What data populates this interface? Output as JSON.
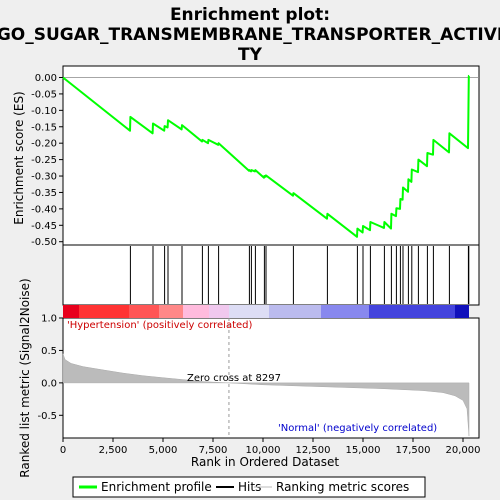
{
  "chart_data": {
    "type": "line",
    "title_lines": [
      "Enrichment plot:",
      "GO_SUGAR_TRANSMEMBRANE_TRANSPORTER_ACTIVI",
      "TY"
    ],
    "xlabel": "Rank in Ordered Dataset",
    "xlim": [
      0,
      20800
    ],
    "x_ticks": [
      0,
      2500,
      5000,
      7500,
      10000,
      12500,
      15000,
      17500,
      20000
    ],
    "x_tick_labels": [
      "0",
      "2,500",
      "5,000",
      "7,500",
      "10,000",
      "12,500",
      "15,000",
      "17,500",
      "20,000"
    ],
    "es_panel": {
      "ylabel": "Enrichment score (ES)",
      "ylim": [
        -0.51,
        0.035
      ],
      "y_ticks": [
        0.0,
        -0.05,
        -0.1,
        -0.15,
        -0.2,
        -0.25,
        -0.3,
        -0.35,
        -0.4,
        -0.45,
        -0.5
      ],
      "y_tick_labels": [
        "0.00",
        "-0.05",
        "-0.10",
        "-0.15",
        "-0.20",
        "-0.25",
        "-0.30",
        "-0.35",
        "-0.40",
        "-0.45",
        "-0.50"
      ],
      "series": [
        {
          "name": "Enrichment profile",
          "color": "#00ff00",
          "x": [
            0,
            3350,
            3370,
            4480,
            4500,
            5060,
            5080,
            5230,
            5250,
            5930,
            5950,
            6950,
            6970,
            7250,
            7270,
            7760,
            7780,
            9300,
            9320,
            9400,
            9420,
            9600,
            9620,
            10050,
            10070,
            10130,
            10150,
            11500,
            11520,
            13200,
            13220,
            14700,
            14720,
            14980,
            15000,
            15350,
            15370,
            16050,
            16070,
            16400,
            16420,
            16650,
            16670,
            16850,
            16870,
            16980,
            17000,
            17250,
            17270,
            17420,
            17440,
            17750,
            17770,
            18200,
            18220,
            18500,
            18520,
            19300,
            19320,
            20250,
            20270,
            20290,
            20300
          ],
          "y": [
            0.0,
            -0.162,
            -0.12,
            -0.17,
            -0.14,
            -0.162,
            -0.148,
            -0.152,
            -0.13,
            -0.158,
            -0.145,
            -0.195,
            -0.19,
            -0.2,
            -0.19,
            -0.205,
            -0.2,
            -0.284,
            -0.282,
            -0.286,
            -0.282,
            -0.286,
            -0.282,
            -0.305,
            -0.3,
            -0.302,
            -0.298,
            -0.36,
            -0.352,
            -0.43,
            -0.415,
            -0.485,
            -0.46,
            -0.472,
            -0.452,
            -0.465,
            -0.44,
            -0.458,
            -0.44,
            -0.46,
            -0.415,
            -0.422,
            -0.398,
            -0.4,
            -0.37,
            -0.372,
            -0.335,
            -0.348,
            -0.31,
            -0.318,
            -0.28,
            -0.288,
            -0.25,
            -0.27,
            -0.23,
            -0.235,
            -0.19,
            -0.228,
            -0.17,
            -0.215,
            -0.11,
            0.005,
            0.005
          ]
        }
      ]
    },
    "hits": [
      3370,
      4500,
      5080,
      5250,
      5950,
      6970,
      7270,
      7780,
      9320,
      9420,
      9620,
      10070,
      10150,
      11520,
      13220,
      14720,
      15000,
      15370,
      16070,
      16420,
      16670,
      16870,
      17000,
      17270,
      17440,
      17770,
      18220,
      18520,
      19320,
      20270,
      20290
    ],
    "color_bar": [
      {
        "x0": 0,
        "x1": 800,
        "color": "#e8001c"
      },
      {
        "x0": 800,
        "x1": 3300,
        "color": "#ff3333"
      },
      {
        "x0": 3300,
        "x1": 4800,
        "color": "#ff5555"
      },
      {
        "x0": 4800,
        "x1": 6000,
        "color": "#ff8888"
      },
      {
        "x0": 6000,
        "x1": 7300,
        "color": "#ffbbdd"
      },
      {
        "x0": 7300,
        "x1": 8300,
        "color": "#f0c8ee"
      },
      {
        "x0": 8300,
        "x1": 10300,
        "color": "#ddddf5"
      },
      {
        "x0": 10300,
        "x1": 12900,
        "color": "#bbbbee"
      },
      {
        "x0": 12900,
        "x1": 15300,
        "color": "#8888ee"
      },
      {
        "x0": 15300,
        "x1": 19600,
        "color": "#4444dd"
      },
      {
        "x0": 19600,
        "x1": 20300,
        "color": "#1111bb"
      }
    ],
    "rank_panel": {
      "ylabel": "Ranked list metric (Signal2Noise)",
      "ylim": [
        -0.85,
        1.0
      ],
      "y_ticks": [
        1.0,
        0.5,
        0.0,
        -0.5
      ],
      "y_tick_labels": [
        "1.0",
        "0.5",
        "0.0",
        "-0.5"
      ],
      "zero_cross": 8297,
      "metric_x": [
        0,
        100,
        400,
        1000,
        2000,
        3000,
        4000,
        5000,
        6000,
        7000,
        8297,
        10000,
        12000,
        14000,
        16000,
        18000,
        19000,
        19600,
        20000,
        20200,
        20300
      ],
      "metric_y": [
        0.45,
        0.36,
        0.3,
        0.25,
        0.2,
        0.15,
        0.11,
        0.08,
        0.05,
        0.02,
        0.0,
        -0.03,
        -0.05,
        -0.07,
        -0.09,
        -0.12,
        -0.15,
        -0.2,
        -0.27,
        -0.4,
        -0.82
      ]
    },
    "annotations": {
      "positive": "'Hypertension' (positively correlated)",
      "negative": "'Normal' (negatively correlated)",
      "zero_cross": "Zero cross at 8297"
    },
    "legend": [
      "Enrichment profile",
      "Hits",
      "Ranking metric scores"
    ]
  }
}
